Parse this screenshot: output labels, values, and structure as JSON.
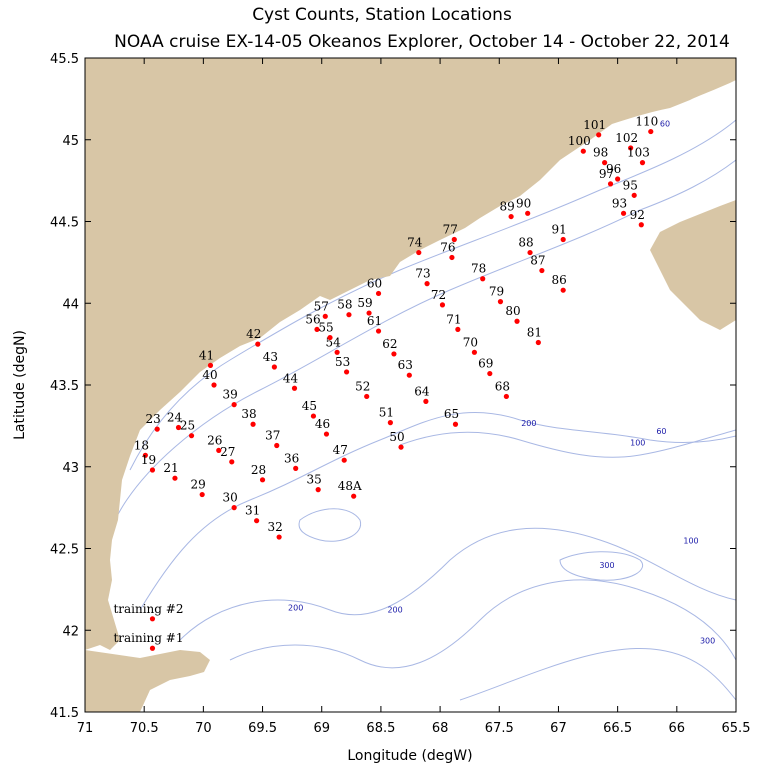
{
  "title_line1": "Cyst Counts, Station Locations",
  "title_line2": "NOAA cruise EX-14-05 Okeanos Explorer, October 14 - October 22, 2014",
  "map": {
    "xlabel": "Longitude (degW)",
    "ylabel": "Latitude (degN)",
    "lon_range": [
      71,
      65.5
    ],
    "lat_range": [
      41.5,
      45.5
    ],
    "lon_ticks": [
      "71",
      "70.5",
      "70",
      "69.5",
      "69",
      "68.5",
      "68",
      "67.5",
      "67",
      "66.5",
      "66",
      "65.5"
    ],
    "lat_ticks": [
      "41.5",
      "42",
      "42.5",
      "43",
      "43.5",
      "44",
      "44.5",
      "45",
      "45.5"
    ],
    "colors": {
      "land": "#d8c6a6",
      "water": "#ffffff",
      "contour": "#a9b8e4",
      "station": "#ff0000",
      "contour_label": "#1a1aa8"
    },
    "contour_labels": [
      {
        "text": "60",
        "lon": 66.1,
        "lat": 45.08
      },
      {
        "text": "60",
        "lon": 66.13,
        "lat": 43.2
      },
      {
        "text": "100",
        "lon": 66.33,
        "lat": 43.13
      },
      {
        "text": "100",
        "lon": 65.88,
        "lat": 42.53
      },
      {
        "text": "200",
        "lon": 67.25,
        "lat": 43.25
      },
      {
        "text": "200",
        "lon": 69.22,
        "lat": 42.12
      },
      {
        "text": "200",
        "lon": 68.38,
        "lat": 42.11
      },
      {
        "text": "300",
        "lon": 66.59,
        "lat": 42.38
      },
      {
        "text": "300",
        "lon": 65.74,
        "lat": 41.92
      }
    ],
    "stations": [
      {
        "label": "training #1",
        "lon": 70.43,
        "lat": 41.89
      },
      {
        "label": "training #2",
        "lon": 70.43,
        "lat": 42.07
      },
      {
        "label": "18",
        "lon": 70.49,
        "lat": 43.07
      },
      {
        "label": "19",
        "lon": 70.43,
        "lat": 42.98
      },
      {
        "label": "21",
        "lon": 70.24,
        "lat": 42.93
      },
      {
        "label": "23",
        "lon": 70.39,
        "lat": 43.23
      },
      {
        "label": "24",
        "lon": 70.21,
        "lat": 43.24
      },
      {
        "label": "25",
        "lon": 70.1,
        "lat": 43.19
      },
      {
        "label": "26",
        "lon": 69.87,
        "lat": 43.1
      },
      {
        "label": "27",
        "lon": 69.76,
        "lat": 43.03
      },
      {
        "label": "28",
        "lon": 69.5,
        "lat": 42.92
      },
      {
        "label": "29",
        "lon": 70.01,
        "lat": 42.83
      },
      {
        "label": "30",
        "lon": 69.74,
        "lat": 42.75
      },
      {
        "label": "31",
        "lon": 69.55,
        "lat": 42.67
      },
      {
        "label": "32",
        "lon": 69.36,
        "lat": 42.57
      },
      {
        "label": "35",
        "lon": 69.03,
        "lat": 42.86
      },
      {
        "label": "36",
        "lon": 69.22,
        "lat": 42.99
      },
      {
        "label": "37",
        "lon": 69.38,
        "lat": 43.13
      },
      {
        "label": "38",
        "lon": 69.58,
        "lat": 43.26
      },
      {
        "label": "39",
        "lon": 69.74,
        "lat": 43.38
      },
      {
        "label": "40",
        "lon": 69.91,
        "lat": 43.5
      },
      {
        "label": "41",
        "lon": 69.94,
        "lat": 43.62
      },
      {
        "label": "42",
        "lon": 69.54,
        "lat": 43.75
      },
      {
        "label": "43",
        "lon": 69.4,
        "lat": 43.61
      },
      {
        "label": "44",
        "lon": 69.23,
        "lat": 43.48
      },
      {
        "label": "45",
        "lon": 69.07,
        "lat": 43.31
      },
      {
        "label": "46",
        "lon": 68.96,
        "lat": 43.2
      },
      {
        "label": "47",
        "lon": 68.81,
        "lat": 43.04
      },
      {
        "label": "48A",
        "lon": 68.73,
        "lat": 42.82
      },
      {
        "label": "50",
        "lon": 68.33,
        "lat": 43.12
      },
      {
        "label": "51",
        "lon": 68.42,
        "lat": 43.27
      },
      {
        "label": "52",
        "lon": 68.62,
        "lat": 43.43
      },
      {
        "label": "53",
        "lon": 68.79,
        "lat": 43.58
      },
      {
        "label": "54",
        "lon": 68.87,
        "lat": 43.7
      },
      {
        "label": "55",
        "lon": 68.93,
        "lat": 43.79
      },
      {
        "label": "56",
        "lon": 69.04,
        "lat": 43.84
      },
      {
        "label": "57",
        "lon": 68.97,
        "lat": 43.92
      },
      {
        "label": "58",
        "lon": 68.77,
        "lat": 43.93
      },
      {
        "label": "59",
        "lon": 68.6,
        "lat": 43.94
      },
      {
        "label": "60",
        "lon": 68.52,
        "lat": 44.06
      },
      {
        "label": "61",
        "lon": 68.52,
        "lat": 43.83
      },
      {
        "label": "62",
        "lon": 68.39,
        "lat": 43.69
      },
      {
        "label": "63",
        "lon": 68.26,
        "lat": 43.56
      },
      {
        "label": "64",
        "lon": 68.12,
        "lat": 43.4
      },
      {
        "label": "65",
        "lon": 67.87,
        "lat": 43.26
      },
      {
        "label": "68",
        "lon": 67.44,
        "lat": 43.43
      },
      {
        "label": "69",
        "lon": 67.58,
        "lat": 43.57
      },
      {
        "label": "70",
        "lon": 67.71,
        "lat": 43.7
      },
      {
        "label": "71",
        "lon": 67.85,
        "lat": 43.84
      },
      {
        "label": "72",
        "lon": 67.98,
        "lat": 43.99
      },
      {
        "label": "73",
        "lon": 68.11,
        "lat": 44.12
      },
      {
        "label": "74",
        "lon": 68.18,
        "lat": 44.31
      },
      {
        "label": "76",
        "lon": 67.9,
        "lat": 44.28
      },
      {
        "label": "77",
        "lon": 67.88,
        "lat": 44.39
      },
      {
        "label": "78",
        "lon": 67.64,
        "lat": 44.15
      },
      {
        "label": "79",
        "lon": 67.49,
        "lat": 44.01
      },
      {
        "label": "80",
        "lon": 67.35,
        "lat": 43.89
      },
      {
        "label": "81",
        "lon": 67.17,
        "lat": 43.76
      },
      {
        "label": "86",
        "lon": 66.96,
        "lat": 44.08
      },
      {
        "label": "87",
        "lon": 67.14,
        "lat": 44.2
      },
      {
        "label": "88",
        "lon": 67.24,
        "lat": 44.31
      },
      {
        "label": "89",
        "lon": 67.4,
        "lat": 44.53
      },
      {
        "label": "90",
        "lon": 67.26,
        "lat": 44.55
      },
      {
        "label": "91",
        "lon": 66.96,
        "lat": 44.39
      },
      {
        "label": "92",
        "lon": 66.3,
        "lat": 44.48
      },
      {
        "label": "93",
        "lon": 66.45,
        "lat": 44.55
      },
      {
        "label": "95",
        "lon": 66.36,
        "lat": 44.66
      },
      {
        "label": "96",
        "lon": 66.5,
        "lat": 44.76
      },
      {
        "label": "97",
        "lon": 66.56,
        "lat": 44.73
      },
      {
        "label": "98",
        "lon": 66.61,
        "lat": 44.86
      },
      {
        "label": "100",
        "lon": 66.79,
        "lat": 44.93
      },
      {
        "label": "101",
        "lon": 66.66,
        "lat": 45.03
      },
      {
        "label": "102",
        "lon": 66.39,
        "lat": 44.95
      },
      {
        "label": "103",
        "lon": 66.29,
        "lat": 44.86
      },
      {
        "label": "110",
        "lon": 66.22,
        "lat": 45.05
      }
    ]
  }
}
